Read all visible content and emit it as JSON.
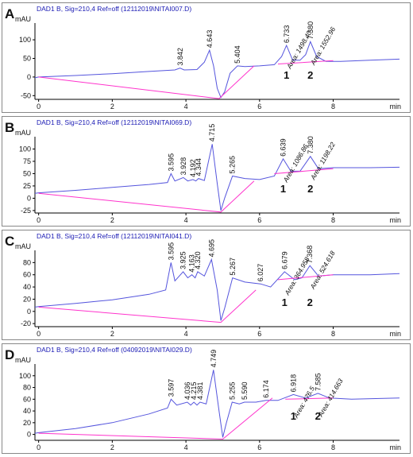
{
  "chart_data": [
    {
      "type": "line",
      "panel": "A",
      "title": "DAD1 B, Sig=210,4 Ref=off (12112019\\NITAI007.D)",
      "y_label": "mAU",
      "x_label": "min",
      "xlim": [
        -0.1,
        9.8
      ],
      "ylim": [
        -60,
        145
      ],
      "xticks": [
        0,
        2,
        4,
        6,
        8
      ],
      "yticks": [
        -50,
        0,
        50,
        100
      ],
      "series": [
        {
          "color": "#5555dd",
          "x": [
            -0.1,
            0,
            1,
            2,
            3,
            3.7,
            3.84,
            3.95,
            4.3,
            4.5,
            4.64,
            4.75,
            4.85,
            4.95,
            5.05,
            5.2,
            5.4,
            5.6,
            6.0,
            6.4,
            6.6,
            6.73,
            6.9,
            7.1,
            7.25,
            7.38,
            7.55,
            7.8,
            8.2,
            9,
            9.8
          ],
          "values": [
            -2,
            0,
            4,
            9,
            15,
            19,
            24,
            19,
            20,
            40,
            72,
            30,
            -30,
            -55,
            -40,
            10,
            30,
            28,
            30,
            33,
            55,
            85,
            45,
            45,
            60,
            95,
            55,
            42,
            42,
            45,
            48
          ]
        },
        {
          "color": "#ff33cc",
          "x": [
            0,
            4.9,
            5.85,
            6.2,
            6.5,
            8.0
          ],
          "values": [
            0,
            -58,
            30,
            null,
            35,
            44
          ]
        }
      ],
      "peaks": {
        "times": [
          3.842,
          4.643,
          5.404,
          6.733,
          {
            "value": 7.38,
            "label": "7.380"
          }
        ],
        "heights": [
          24,
          72,
          30,
          85,
          95
        ]
      },
      "area_labels": [
        "Area: 1498.40",
        "Area: 1552.96"
      ],
      "compound_labels": [
        "1",
        "2"
      ]
    },
    {
      "type": "line",
      "panel": "B",
      "title": "DAD1 B, Sig=210,4 Ref=off (12112019\\NITAI069.D)",
      "y_label": "mAU",
      "x_label": "min",
      "xlim": [
        -0.1,
        9.8
      ],
      "ylim": [
        -30,
        125
      ],
      "xticks": [
        0,
        2,
        4,
        6,
        8
      ],
      "yticks": [
        -25,
        0,
        25,
        50,
        75,
        100
      ],
      "series": [
        {
          "color": "#5555dd",
          "x": [
            -0.1,
            0,
            1,
            2,
            3,
            3.5,
            3.595,
            3.7,
            3.93,
            4.05,
            4.19,
            4.27,
            4.34,
            4.5,
            4.715,
            4.85,
            4.95,
            5.05,
            5.265,
            5.6,
            6.0,
            6.4,
            6.64,
            6.85,
            7.1,
            7.38,
            7.6,
            8,
            9,
            9.8
          ],
          "values": [
            10,
            11,
            16,
            22,
            28,
            32,
            50,
            35,
            42,
            35,
            38,
            35,
            40,
            36,
            110,
            30,
            -25,
            0,
            45,
            40,
            38,
            45,
            80,
            55,
            55,
            85,
            60,
            62,
            62,
            63
          ]
        },
        {
          "color": "#ff33cc",
          "x": [
            0,
            4.95,
            5.85,
            6.2,
            6.4,
            8.0
          ],
          "values": [
            10,
            -28,
            35,
            null,
            50,
            60
          ]
        }
      ],
      "peaks": {
        "times": [
          3.595,
          3.928,
          4.192,
          4.344,
          4.715,
          5.265,
          6.639,
          {
            "value": 7.38,
            "label": "7.380"
          }
        ],
        "heights": [
          50,
          42,
          38,
          40,
          110,
          45,
          80,
          85
        ]
      },
      "area_labels": [
        "Area: 1086.86",
        "Area: 1198.22"
      ],
      "compound_labels": [
        "1",
        "2"
      ]
    },
    {
      "type": "line",
      "panel": "C",
      "title": "DAD1 B, Sig=210,4 Ref=off (12112019\\NITAI041.D)",
      "y_label": "mAU",
      "x_label": "min",
      "xlim": [
        -0.1,
        9.8
      ],
      "ylim": [
        -25,
        100
      ],
      "xticks": [
        0,
        2,
        4,
        6,
        8
      ],
      "yticks": [
        -20,
        0,
        20,
        40,
        60,
        80
      ],
      "series": [
        {
          "color": "#5555dd",
          "x": [
            -0.1,
            0,
            1,
            2,
            3,
            3.45,
            3.595,
            3.7,
            3.925,
            4.05,
            4.163,
            4.25,
            4.32,
            4.5,
            4.695,
            4.85,
            4.95,
            5.05,
            5.267,
            5.6,
            6.027,
            6.3,
            6.679,
            6.95,
            7.15,
            7.368,
            7.6,
            8,
            9,
            9.8
          ],
          "values": [
            7,
            8,
            13,
            19,
            28,
            35,
            80,
            50,
            65,
            55,
            60,
            55,
            65,
            58,
            85,
            35,
            -15,
            5,
            55,
            48,
            45,
            40,
            65,
            52,
            55,
            75,
            58,
            60,
            60,
            62
          ]
        },
        {
          "color": "#ff33cc",
          "x": [
            0,
            4.95,
            5.9,
            6.25,
            6.5,
            8.0
          ],
          "values": [
            7,
            -18,
            35,
            null,
            52,
            60
          ]
        }
      ],
      "peaks": {
        "times": [
          3.595,
          3.925,
          4.163,
          {
            "value": 4.32,
            "label": "4.320"
          },
          4.695,
          5.267,
          6.027,
          6.679,
          7.368
        ],
        "heights": [
          80,
          65,
          60,
          65,
          85,
          55,
          45,
          65,
          75
        ]
      },
      "area_labels": [
        "Area: 364.958",
        "Area: 524.618"
      ],
      "compound_labels": [
        "1",
        "2"
      ]
    },
    {
      "type": "line",
      "panel": "D",
      "title": "DAD1 B, Sig=210,4 Ref=off (04092019\\NITAI029.D)",
      "y_label": "mAU",
      "x_label": "min",
      "xlim": [
        -0.1,
        9.8
      ],
      "ylim": [
        -10,
        120
      ],
      "xticks": [
        0,
        2,
        4,
        6,
        8
      ],
      "yticks": [
        0,
        20,
        40,
        60,
        80,
        100
      ],
      "series": [
        {
          "color": "#5555dd",
          "x": [
            -0.1,
            0,
            1,
            2,
            3,
            3.5,
            3.597,
            3.75,
            4.036,
            4.13,
            4.215,
            4.3,
            4.381,
            4.55,
            4.749,
            4.9,
            5.0,
            5.1,
            5.255,
            5.45,
            5.59,
            5.9,
            6.174,
            6.5,
            6.918,
            7.25,
            7.585,
            7.9,
            8.5,
            9.8
          ],
          "values": [
            2,
            3,
            10,
            20,
            35,
            45,
            60,
            50,
            55,
            50,
            55,
            50,
            55,
            52,
            110,
            40,
            -5,
            20,
            55,
            52,
            55,
            55,
            58,
            58,
            68,
            62,
            70,
            62,
            60,
            62
          ]
        },
        {
          "color": "#ff33cc",
          "x": [
            0,
            5.0,
            6.35,
            6.6,
            6.7,
            8.0
          ],
          "values": [
            2,
            -8,
            62,
            null,
            60,
            62
          ]
        }
      ],
      "peaks": {
        "times": [
          3.597,
          4.036,
          4.215,
          4.381,
          4.749,
          5.255,
          {
            "value": 5.59,
            "label": "5.590"
          },
          6.174,
          6.918,
          7.585
        ],
        "heights": [
          60,
          55,
          55,
          55,
          110,
          55,
          55,
          58,
          68,
          70
        ]
      },
      "area_labels": [
        "Area: 476.5",
        "Area: 414.663"
      ],
      "compound_labels": [
        "1",
        "2"
      ]
    }
  ]
}
